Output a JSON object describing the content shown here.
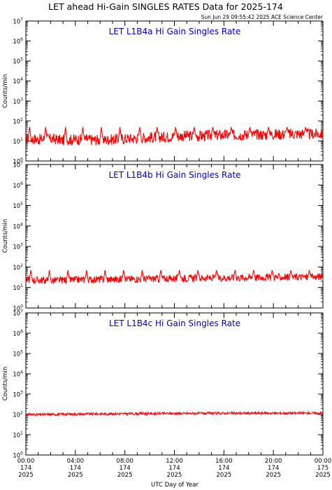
{
  "figure": {
    "title": "LET ahead Hi-Gain SINGLES RATES Data for 2025-174",
    "timestamp": "Sun Jun 29 09:55:42 2025 ACE Science Center",
    "x_axis_label": "UTC Day of Year",
    "y_axis_label": "Counts/min"
  },
  "colors": {
    "series": "#ff0000",
    "panel_title": "#0000cc",
    "axis": "#000000"
  },
  "chart_data": [
    {
      "type": "line",
      "title": "LET L1B4a Hi Gain Singles Rate",
      "ylabel": "Counts/min",
      "xlabel": "",
      "x_unit": "hour",
      "yscale": "log",
      "ylim": [
        1,
        10000000
      ],
      "xlim": [
        0,
        24
      ],
      "y_tick_labels": [
        {
          "value": 1,
          "base": "10",
          "exp": "0"
        },
        {
          "value": 10,
          "base": "10",
          "exp": "1"
        },
        {
          "value": 100,
          "base": "10",
          "exp": "2"
        },
        {
          "value": 1000,
          "base": "10",
          "exp": "3"
        },
        {
          "value": 10000,
          "base": "10",
          "exp": "4"
        },
        {
          "value": 100000,
          "base": "10",
          "exp": "5"
        },
        {
          "value": 1000000,
          "base": "10",
          "exp": "6"
        },
        {
          "value": 10000000,
          "base": "10",
          "exp": "7"
        }
      ],
      "series": [
        {
          "x": [
            0,
            1,
            2,
            3,
            4,
            5,
            6,
            7,
            8,
            9,
            10,
            11,
            12,
            13,
            14,
            15,
            16,
            17,
            18,
            19,
            20,
            21,
            22,
            23,
            24
          ],
          "values": [
            14,
            12,
            13,
            11,
            12,
            12,
            11,
            12,
            13,
            14,
            15,
            16,
            17,
            18,
            18,
            19,
            20,
            20,
            21,
            21,
            22,
            22,
            23,
            22,
            23
          ],
          "spikes": [
            0.3,
            1.6,
            3.2,
            4.6,
            6.1,
            7.6,
            9.2,
            10.6,
            12.1,
            13.6,
            15.1,
            16.6,
            18.1,
            19.6,
            21.1,
            22.6
          ],
          "spike_value": 50,
          "noise": 0.55
        }
      ]
    },
    {
      "type": "line",
      "title": "LET L1B4b Hi Gain Singles Rate",
      "ylabel": "Counts/min",
      "xlabel": "",
      "x_unit": "hour",
      "yscale": "log",
      "ylim": [
        1,
        10000000
      ],
      "xlim": [
        0,
        24
      ],
      "y_tick_labels": [
        {
          "value": 1,
          "base": "10",
          "exp": "0"
        },
        {
          "value": 10,
          "base": "10",
          "exp": "1"
        },
        {
          "value": 100,
          "base": "10",
          "exp": "2"
        },
        {
          "value": 1000,
          "base": "10",
          "exp": "3"
        },
        {
          "value": 10000,
          "base": "10",
          "exp": "4"
        },
        {
          "value": 100000,
          "base": "10",
          "exp": "5"
        },
        {
          "value": 1000000,
          "base": "10",
          "exp": "6"
        },
        {
          "value": 10000000,
          "base": "10",
          "exp": "7"
        }
      ],
      "series": [
        {
          "x": [
            0,
            1,
            2,
            3,
            4,
            5,
            6,
            7,
            8,
            9,
            10,
            11,
            12,
            13,
            14,
            15,
            16,
            17,
            18,
            19,
            20,
            21,
            22,
            23,
            24
          ],
          "values": [
            24,
            23,
            22,
            23,
            24,
            24,
            25,
            25,
            26,
            26,
            27,
            27,
            28,
            28,
            29,
            29,
            30,
            30,
            31,
            31,
            32,
            32,
            33,
            32,
            34
          ],
          "spikes": [
            0.4,
            1.9,
            3.4,
            4.9,
            6.4,
            7.9,
            9.4,
            10.9,
            12.4,
            13.9,
            15.4,
            16.9,
            18.4,
            19.9,
            21.4,
            22.9
          ],
          "spike_value": 70,
          "noise": 0.35
        }
      ]
    },
    {
      "type": "line",
      "title": "LET L1B4c Hi Gain Singles Rate",
      "ylabel": "Counts/min",
      "xlabel": "UTC Day of Year",
      "x_unit": "hour",
      "yscale": "log",
      "ylim": [
        1,
        10000000
      ],
      "xlim": [
        0,
        24
      ],
      "y_tick_labels": [
        {
          "value": 1,
          "base": "10",
          "exp": "0"
        },
        {
          "value": 10,
          "base": "10",
          "exp": "1"
        },
        {
          "value": 100,
          "base": "10",
          "exp": "2"
        },
        {
          "value": 1000,
          "base": "10",
          "exp": "3"
        },
        {
          "value": 10000,
          "base": "10",
          "exp": "4"
        },
        {
          "value": 100000,
          "base": "10",
          "exp": "5"
        },
        {
          "value": 1000000,
          "base": "10",
          "exp": "6"
        },
        {
          "value": 10000000,
          "base": "10",
          "exp": "7"
        }
      ],
      "x_tick_labels": [
        {
          "x": 0,
          "lines": [
            "00:00",
            "174",
            "2025"
          ]
        },
        {
          "x": 4,
          "lines": [
            "04:00",
            "174",
            "2025"
          ]
        },
        {
          "x": 8,
          "lines": [
            "08:00",
            "174",
            "2025"
          ]
        },
        {
          "x": 12,
          "lines": [
            "12:00",
            "174",
            "2025"
          ]
        },
        {
          "x": 16,
          "lines": [
            "16:00",
            "174",
            "2025"
          ]
        },
        {
          "x": 20,
          "lines": [
            "20:00",
            "174",
            "2025"
          ]
        },
        {
          "x": 24,
          "lines": [
            "00:00",
            "175",
            "2025"
          ]
        }
      ],
      "series": [
        {
          "x": [
            0,
            1,
            2,
            3,
            4,
            5,
            6,
            7,
            8,
            9,
            10,
            11,
            12,
            13,
            14,
            15,
            16,
            17,
            18,
            19,
            20,
            21,
            22,
            23,
            24
          ],
          "values": [
            100,
            98,
            100,
            102,
            104,
            105,
            106,
            107,
            108,
            109,
            110,
            111,
            112,
            112,
            113,
            113,
            114,
            114,
            114,
            115,
            115,
            115,
            116,
            116,
            116
          ],
          "spikes": [],
          "spike_value": 0,
          "noise": 0.12
        }
      ]
    }
  ]
}
